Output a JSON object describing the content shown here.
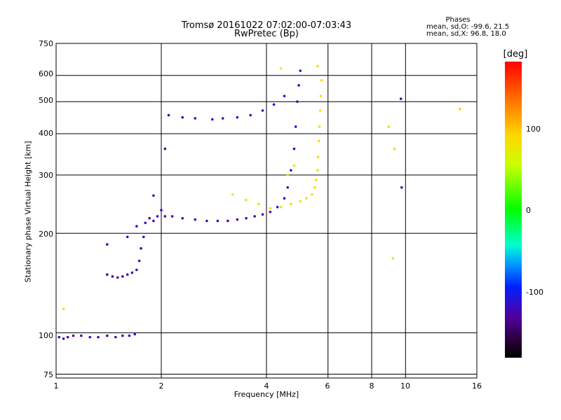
{
  "title_line1": "Tromsø 20161022 07:02:00-07:03:43",
  "title_line2": "RwPretec (Bp)",
  "phases": {
    "title": "Phases",
    "o_line": "mean, sd,O: -99.6, 21.5",
    "x_line": "mean, sd,X: 96.8, 18.0"
  },
  "colorbar": {
    "title": "[deg]",
    "ticks": [
      "100",
      "0",
      "-100"
    ],
    "range": [
      -180,
      180
    ],
    "colors": [
      "#000000",
      "#2a003a",
      "#5000a0",
      "#0020ff",
      "#00a0ff",
      "#00ffd0",
      "#00ff00",
      "#c8ff00",
      "#ffd800",
      "#ff6a00",
      "#ff0000"
    ]
  },
  "chart_data": {
    "type": "scatter",
    "xlabel": "Frequency [MHz]",
    "ylabel": "Stationary phase Virtual Height [km]",
    "x_scale": "log",
    "y_scale": "log",
    "xlim": [
      1,
      16
    ],
    "ylim": [
      73,
      750
    ],
    "grid": true,
    "x_ticks": [
      "1",
      "2",
      "4",
      "6",
      "8",
      "10",
      "16"
    ],
    "x_tick_values": [
      1,
      2,
      4,
      6,
      8,
      10,
      16
    ],
    "y_ticks": [
      "750",
      "600",
      "500",
      "400",
      "300",
      "200",
      "100",
      "75"
    ],
    "y_tick_values": [
      750,
      600,
      500,
      400,
      300,
      200,
      100,
      75
    ],
    "series": [
      {
        "points": [
          [
            1.02,
            97,
            -100
          ],
          [
            1.05,
            96,
            -95
          ],
          [
            1.08,
            97,
            -110
          ],
          [
            1.12,
            98,
            -105
          ],
          [
            1.18,
            98,
            -100
          ],
          [
            1.25,
            97,
            -102
          ],
          [
            1.32,
            97,
            -98
          ],
          [
            1.4,
            98,
            -105
          ],
          [
            1.48,
            97,
            -100
          ],
          [
            1.55,
            98,
            -95
          ],
          [
            1.62,
            98,
            -90
          ],
          [
            1.68,
            99,
            -85
          ],
          [
            1.4,
            150,
            -110
          ],
          [
            1.45,
            148,
            -112
          ],
          [
            1.5,
            147,
            -105
          ],
          [
            1.55,
            148,
            -100
          ],
          [
            1.6,
            150,
            -108
          ],
          [
            1.65,
            152,
            -100
          ],
          [
            1.7,
            155,
            -95
          ],
          [
            1.73,
            165,
            -100
          ],
          [
            1.75,
            180,
            -105
          ],
          [
            1.78,
            195,
            -110
          ],
          [
            1.8,
            215,
            -100
          ],
          [
            1.85,
            222,
            -110
          ],
          [
            1.9,
            218,
            -105
          ],
          [
            1.95,
            225,
            -108
          ],
          [
            2.0,
            235,
            -100
          ],
          [
            2.05,
            225,
            -105
          ],
          [
            2.15,
            225,
            -110
          ],
          [
            2.3,
            222,
            -100
          ],
          [
            2.5,
            220,
            -98
          ],
          [
            2.7,
            218,
            -95
          ],
          [
            2.9,
            218,
            -100
          ],
          [
            3.1,
            218,
            -110
          ],
          [
            3.3,
            220,
            -105
          ],
          [
            3.5,
            222,
            -100
          ],
          [
            3.7,
            225,
            -108
          ],
          [
            3.9,
            228,
            -105
          ],
          [
            4.1,
            232,
            -100
          ],
          [
            4.3,
            240,
            -95
          ],
          [
            4.5,
            255,
            -100
          ],
          [
            4.6,
            275,
            -95
          ],
          [
            4.7,
            310,
            -90
          ],
          [
            4.8,
            360,
            -85
          ],
          [
            4.85,
            420,
            -90
          ],
          [
            4.9,
            500,
            -95
          ],
          [
            4.95,
            560,
            -100
          ],
          [
            5.0,
            620,
            -90
          ],
          [
            2.1,
            455,
            -110
          ],
          [
            2.3,
            448,
            -100
          ],
          [
            2.5,
            445,
            -95
          ],
          [
            2.8,
            442,
            -100
          ],
          [
            3.0,
            445,
            -105
          ],
          [
            3.3,
            448,
            -100
          ],
          [
            3.6,
            455,
            -95
          ],
          [
            3.9,
            470,
            -90
          ],
          [
            4.2,
            490,
            -85
          ],
          [
            4.5,
            520,
            -80
          ],
          [
            1.4,
            185,
            -105
          ],
          [
            1.6,
            195,
            -100
          ],
          [
            1.7,
            210,
            -95
          ],
          [
            1.9,
            260,
            -100
          ],
          [
            2.05,
            360,
            -105
          ],
          [
            9.7,
            510,
            -100
          ],
          [
            9.75,
            275,
            -110
          ]
        ]
      },
      {
        "points": [
          [
            3.2,
            262,
            90
          ],
          [
            3.5,
            252,
            95
          ],
          [
            3.8,
            245,
            100
          ],
          [
            4.1,
            238,
            98
          ],
          [
            4.4,
            240,
            100
          ],
          [
            4.7,
            245,
            95
          ],
          [
            5.0,
            250,
            92
          ],
          [
            5.2,
            255,
            100
          ],
          [
            5.4,
            262,
            105
          ],
          [
            5.5,
            275,
            100
          ],
          [
            5.55,
            290,
            95
          ],
          [
            5.6,
            310,
            98
          ],
          [
            5.62,
            340,
            100
          ],
          [
            5.65,
            380,
            105
          ],
          [
            5.67,
            420,
            100
          ],
          [
            5.7,
            470,
            95
          ],
          [
            5.72,
            520,
            100
          ],
          [
            5.75,
            580,
            105
          ],
          [
            5.6,
            640,
            100
          ],
          [
            4.4,
            630,
            90
          ],
          [
            4.6,
            300,
            95
          ],
          [
            4.8,
            320,
            98
          ],
          [
            8.95,
            420,
            100
          ],
          [
            9.3,
            360,
            95
          ],
          [
            14.3,
            475,
            110
          ],
          [
            1.05,
            118,
            90
          ],
          [
            9.2,
            168,
            95
          ]
        ]
      }
    ]
  }
}
